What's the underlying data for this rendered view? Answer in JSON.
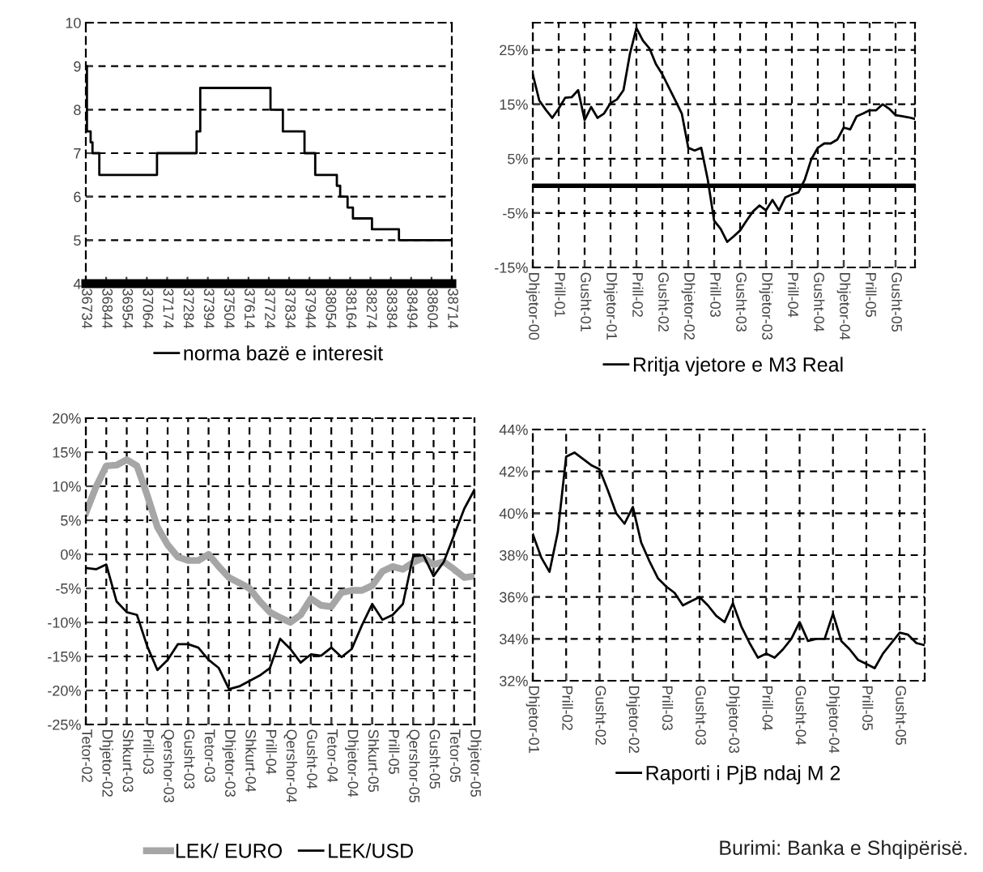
{
  "chart_data": [
    {
      "type": "step",
      "x": [
        36734,
        36740,
        36760,
        36770,
        36807,
        37119,
        37333,
        37353,
        37733,
        37800,
        37917,
        37975,
        38092,
        38110,
        38150,
        38179,
        38282,
        38428,
        38714
      ],
      "series": [
        {
          "name": "norma bazë e interesit",
          "color": "#000000",
          "values": [
            9.0,
            7.5,
            7.25,
            7.0,
            6.5,
            7.0,
            7.5,
            8.5,
            8.0,
            7.5,
            7.0,
            6.5,
            6.25,
            6.0,
            5.75,
            5.5,
            5.25,
            5.0,
            5.0
          ]
        }
      ],
      "xlim": [
        36734,
        38714
      ],
      "xticks": [
        36734,
        36844,
        36954,
        37064,
        37174,
        37284,
        37394,
        37504,
        37614,
        37724,
        37834,
        37944,
        38054,
        38164,
        38274,
        38384,
        38494,
        38604,
        38714
      ],
      "ylim": [
        4,
        10
      ],
      "yticks": [
        4,
        5,
        6,
        7,
        8,
        9,
        10
      ],
      "grid": "y",
      "legend": "bottom"
    },
    {
      "type": "line",
      "categories": [
        "Dhjetor-00",
        null,
        null,
        null,
        "Prill-01",
        null,
        null,
        null,
        "Gusht-01",
        null,
        null,
        null,
        "Dhjetor-01",
        null,
        null,
        null,
        "Prill-02",
        null,
        null,
        null,
        "Gusht-02",
        null,
        null,
        null,
        "Dhjetor-02",
        null,
        null,
        null,
        "Prill-03",
        null,
        null,
        null,
        "Gusht-03",
        null,
        null,
        null,
        "Dhjetor-03",
        null,
        null,
        null,
        "Prill-04",
        null,
        null,
        null,
        "Gusht-04",
        null,
        null,
        null,
        "Dhjetor-04",
        null,
        null,
        null,
        "Prill-05",
        null,
        null,
        null,
        "Gusht-05",
        null,
        null,
        null
      ],
      "series": [
        {
          "name": "Rritja vjetore e M3 Real",
          "color": "#000000",
          "values": [
            20.5,
            15.7,
            14,
            12.5,
            14.2,
            16.2,
            16.3,
            17.6,
            12.1,
            14.5,
            12.5,
            13.3,
            15.2,
            15.9,
            17.6,
            24.3,
            29,
            26.7,
            25.3,
            22.4,
            20.5,
            18.1,
            15.7,
            13.3,
            7.0,
            6.5,
            7.0,
            1.2,
            -6.4,
            -7.9,
            -10.3,
            -9.3,
            -8.2,
            -6.4,
            -4.7,
            -3.6,
            -4.5,
            -2.6,
            -4.5,
            -2.1,
            -1.6,
            -1.2,
            1.2,
            4.9,
            7,
            7.8,
            7.8,
            8.5,
            10.7,
            10.4,
            12.8,
            13.3,
            13.9,
            13.9,
            15,
            14.2,
            13,
            12.8,
            12.6,
            12.3
          ]
        }
      ],
      "ylim": [
        -15,
        30
      ],
      "yticks": [
        {
          "value": -15,
          "label": "-15%"
        },
        {
          "value": -5,
          "label": "-5%"
        },
        {
          "value": 5,
          "label": "5%"
        },
        {
          "value": 15,
          "label": "15%"
        },
        {
          "value": 25,
          "label": "25%"
        }
      ],
      "ref_lines": [
        {
          "axis": "y",
          "value": 0,
          "color": "#000000"
        }
      ],
      "grid": true,
      "legend": "bottom"
    },
    {
      "type": "line",
      "categories": [
        "Tetor-02",
        null,
        "Dhjetor-02",
        null,
        "Shkurt-03",
        null,
        "Prill-03",
        null,
        "Qershor-03",
        null,
        "Gusht-03",
        null,
        "Tetor-03",
        null,
        "Dhjetor-03",
        null,
        "Shkurt-04",
        null,
        "Prill-04",
        null,
        "Qershor-04",
        null,
        "Gusht-04",
        null,
        "Tetor-04",
        null,
        "Dhjetor-04",
        null,
        "Shkurt-05",
        null,
        "Prill-05",
        null,
        "Qershor-05",
        null,
        "Gusht-05",
        null,
        "Tetor-05",
        null,
        "Dhjetor-05"
      ],
      "series": [
        {
          "name": "LEK/ EURO",
          "color": "#a6a6a6",
          "values": [
            6.1,
            9.9,
            13,
            13.1,
            13.9,
            13,
            8.7,
            4,
            1.4,
            -0.4,
            -0.9,
            -0.9,
            0,
            -1.8,
            -3.4,
            -4.2,
            -5,
            -6.9,
            -8.5,
            -9.3,
            -10,
            -8.9,
            -6.5,
            -7.5,
            -7.7,
            -5.6,
            -5.3,
            -5.3,
            -4.6,
            -2.5,
            -1.8,
            -2.2,
            -1.2,
            -0.5,
            -1.5,
            -1.1,
            -2.2,
            -3.4,
            -3.2
          ]
        },
        {
          "name": "LEK/USD",
          "color": "#000000",
          "values": [
            -2.0,
            -2.2,
            -1.5,
            -6.9,
            -8.5,
            -8.9,
            -13.5,
            -17,
            -15.5,
            -13.2,
            -13.2,
            -13.7,
            -15.5,
            -16.7,
            -19.8,
            -19.4,
            -18.6,
            -17.8,
            -16.7,
            -12.4,
            -13.9,
            -15.9,
            -14.7,
            -14.9,
            -13.7,
            -15.1,
            -13.9,
            -10.4,
            -7.3,
            -9.6,
            -8.9,
            -7.3,
            -0.3,
            -0.1,
            -3.2,
            -1.1,
            2.8,
            6.7,
            9.5
          ]
        }
      ],
      "ylim": [
        -25,
        20
      ],
      "yticks": [
        {
          "value": -25,
          "label": "-25%"
        },
        {
          "value": -20,
          "label": "-20%"
        },
        {
          "value": -15,
          "label": "-15%"
        },
        {
          "value": -10,
          "label": "-10%"
        },
        {
          "value": -5,
          "label": "-5%"
        },
        {
          "value": 0,
          "label": "0%"
        },
        {
          "value": 5,
          "label": "5%"
        },
        {
          "value": 10,
          "label": "10%"
        },
        {
          "value": 15,
          "label": "15%"
        },
        {
          "value": 20,
          "label": "20%"
        }
      ],
      "grid": true,
      "legend": "bottom"
    },
    {
      "type": "line",
      "categories": [
        "Dhjetor-01",
        null,
        null,
        null,
        "Prill-02",
        null,
        null,
        null,
        "Gusht-02",
        null,
        null,
        null,
        "Dhjetor-02",
        null,
        null,
        null,
        "Prill-03",
        null,
        null,
        null,
        "Gusht-03",
        null,
        null,
        null,
        "Dhjetor-03",
        null,
        null,
        null,
        "Prill-04",
        null,
        null,
        null,
        "Gusht-04",
        null,
        null,
        null,
        "Dhjetor-04",
        null,
        null,
        null,
        "Prill-05",
        null,
        null,
        null,
        "Gusht-05",
        null,
        null,
        null
      ],
      "series": [
        {
          "name": "Raporti i PjB ndaj M 2",
          "color": "#000000",
          "values": [
            39.0,
            37.9,
            37.2,
            39.1,
            42.7,
            42.9,
            42.6,
            42.3,
            42.1,
            41.1,
            40.0,
            39.5,
            40.3,
            38.6,
            37.7,
            36.9,
            36.5,
            36.2,
            35.6,
            35.8,
            36.0,
            35.6,
            35.1,
            34.8,
            35.7,
            34.6,
            33.8,
            33.1,
            33.3,
            33.1,
            33.5,
            34.0,
            34.8,
            33.9,
            34.0,
            34.0,
            35.2,
            33.9,
            33.5,
            33.0,
            32.8,
            32.6,
            33.3,
            33.8,
            34.3,
            34.2,
            33.8,
            33.7
          ]
        }
      ],
      "ylim": [
        32,
        44
      ],
      "yticks": [
        {
          "value": 32,
          "label": "32%"
        },
        {
          "value": 34,
          "label": "34%"
        },
        {
          "value": 36,
          "label": "36%"
        },
        {
          "value": 38,
          "label": "38%"
        },
        {
          "value": 40,
          "label": "40%"
        },
        {
          "value": 42,
          "label": "42%"
        },
        {
          "value": 44,
          "label": "44%"
        }
      ],
      "grid": true,
      "legend": "bottom",
      "annotations": [
        "Burimi: Banka e Shqipërisë."
      ]
    }
  ]
}
